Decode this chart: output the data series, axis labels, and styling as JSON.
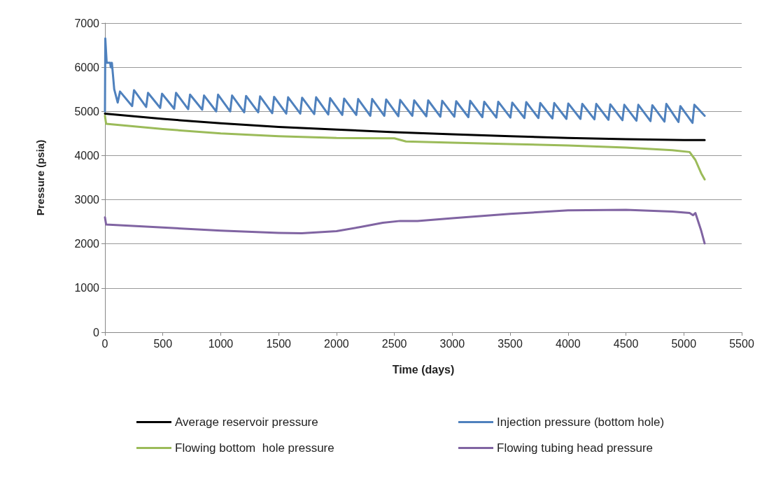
{
  "chart_data": {
    "type": "line",
    "xlabel": "Time (days)",
    "ylabel": "Pressure (psia)",
    "xlim": [
      0,
      5500
    ],
    "xticks": [
      0,
      500,
      1000,
      1500,
      2000,
      2500,
      3000,
      3500,
      4000,
      4500,
      5000,
      5500
    ],
    "ylim": [
      0,
      7000
    ],
    "yticks": [
      0,
      1000,
      2000,
      3000,
      4000,
      5000,
      6000,
      7000
    ],
    "grid": "y",
    "legend": "bottom",
    "marker": "none",
    "line_style": "solid",
    "series": [
      {
        "name": "Average reservoir pressure",
        "color": "#000000",
        "x": [
          0,
          500,
          1000,
          1500,
          2000,
          2500,
          3000,
          3500,
          4000,
          4500,
          5000,
          5180
        ],
        "values": [
          4950,
          4830,
          4730,
          4650,
          4590,
          4530,
          4480,
          4440,
          4400,
          4370,
          4350,
          4350
        ]
      },
      {
        "name": "Injection pressure (bottom hole)",
        "color": "#4f81bd",
        "x": [
          0,
          3,
          15,
          45,
          50,
          60,
          80,
          110,
          130,
          235,
          251,
          356,
          372,
          477,
          493,
          598,
          614,
          719,
          735,
          840,
          856,
          961,
          977,
          1082,
          1098,
          1203,
          1219,
          1324,
          1340,
          1445,
          1461,
          1566,
          1582,
          1687,
          1703,
          1808,
          1824,
          1929,
          1945,
          2050,
          2066,
          2171,
          2187,
          2292,
          2308,
          2413,
          2429,
          2534,
          2550,
          2655,
          2671,
          2776,
          2792,
          2897,
          2913,
          3018,
          3034,
          3139,
          3155,
          3260,
          3276,
          3381,
          3397,
          3502,
          3518,
          3623,
          3639,
          3744,
          3760,
          3865,
          3881,
          3986,
          4002,
          4107,
          4123,
          4228,
          4244,
          4349,
          4365,
          4470,
          4486,
          4591,
          4607,
          4712,
          4728,
          4833,
          4849,
          4954,
          4970,
          5075,
          5091,
          5180
        ],
        "values": [
          5000,
          6650,
          6100,
          6100,
          6000,
          6100,
          5500,
          5200,
          5450,
          5120,
          5480,
          5100,
          5420,
          5080,
          5400,
          5060,
          5420,
          5050,
          5380,
          5040,
          5360,
          5000,
          5380,
          5000,
          5360,
          4980,
          5350,
          4980,
          5340,
          4960,
          5330,
          4950,
          5320,
          4950,
          5310,
          4940,
          5320,
          4930,
          5300,
          4920,
          5290,
          4920,
          5280,
          4900,
          5280,
          4900,
          5270,
          4890,
          5260,
          4900,
          5250,
          4890,
          5250,
          4880,
          5240,
          4880,
          5230,
          4870,
          5240,
          4870,
          5220,
          4860,
          5220,
          4860,
          5200,
          4850,
          5210,
          4850,
          5190,
          4840,
          5190,
          4830,
          5180,
          4830,
          5170,
          4820,
          5170,
          4810,
          5160,
          4800,
          5150,
          4790,
          5150,
          4780,
          5140,
          4770,
          5170,
          4760,
          5120,
          4740,
          5150,
          4900
        ]
      },
      {
        "name": "Flowing bottom  hole pressure",
        "color": "#9bbb59",
        "x": [
          0,
          10,
          500,
          1000,
          1500,
          2000,
          2500,
          2600,
          3000,
          3500,
          4000,
          4500,
          4900,
          5050,
          5100,
          5150,
          5180
        ],
        "values": [
          4900,
          4720,
          4600,
          4500,
          4440,
          4400,
          4390,
          4320,
          4290,
          4260,
          4230,
          4180,
          4120,
          4080,
          3900,
          3600,
          3460
        ]
      },
      {
        "name": "Flowing tubing head pressure",
        "color": "#8064a2",
        "x": [
          0,
          10,
          500,
          1000,
          1500,
          1700,
          2000,
          2200,
          2400,
          2550,
          2700,
          3000,
          3500,
          4000,
          4500,
          4900,
          5050,
          5080,
          5100,
          5150,
          5180
        ],
        "values": [
          2600,
          2440,
          2370,
          2300,
          2250,
          2240,
          2290,
          2380,
          2480,
          2520,
          2520,
          2580,
          2680,
          2760,
          2770,
          2730,
          2700,
          2650,
          2700,
          2300,
          2010
        ]
      }
    ]
  }
}
